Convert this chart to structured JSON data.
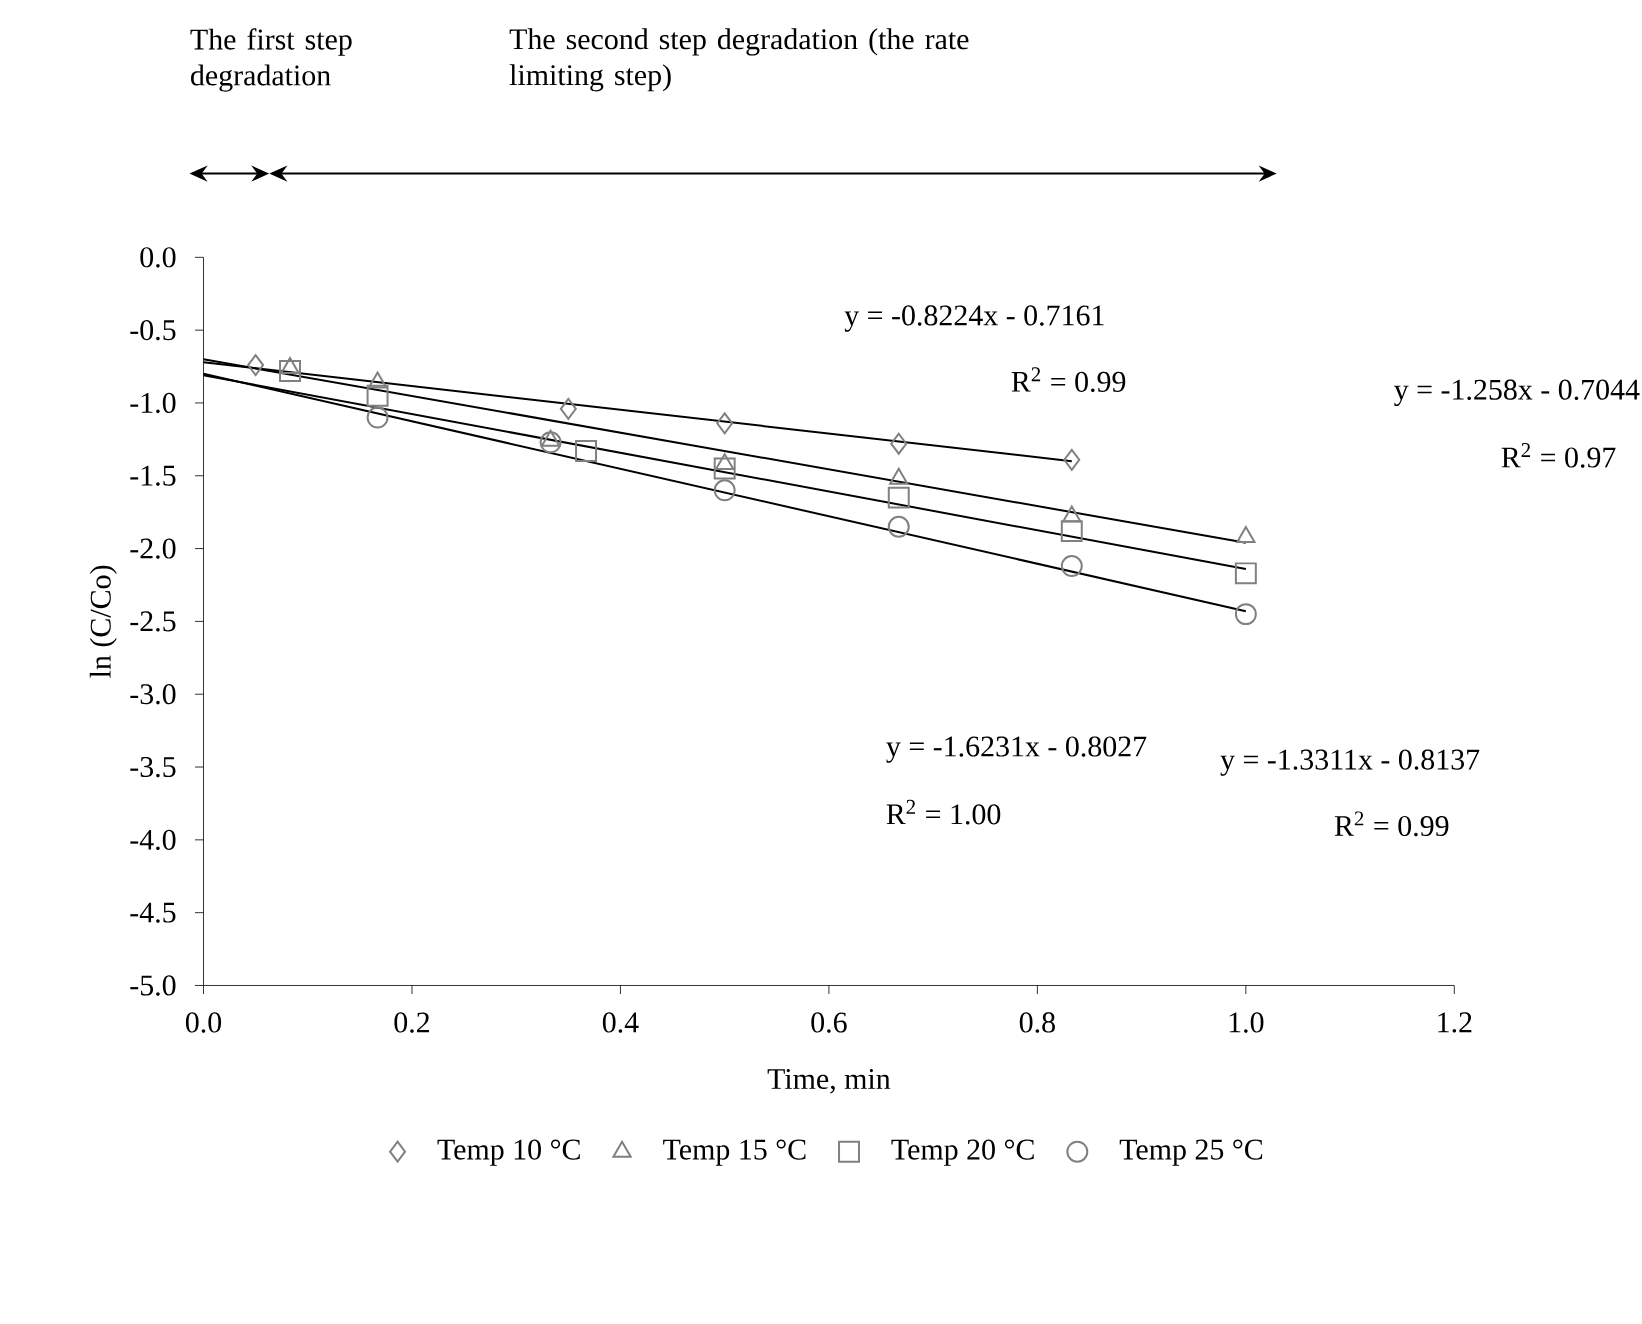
{
  "chart_data": {
    "type": "scatter",
    "xlabel": "Time, min",
    "ylabel": "ln (C/Co)",
    "xlim": [
      0,
      1.2
    ],
    "ylim": [
      -5,
      0
    ],
    "xticks": [
      {
        "value": 0,
        "label": "0.0"
      },
      {
        "value": 0.2,
        "label": "0.2"
      },
      {
        "value": 0.4,
        "label": "0.4"
      },
      {
        "value": 0.6,
        "label": "0.6"
      },
      {
        "value": 0.8,
        "label": "0.8"
      },
      {
        "value": 1.0,
        "label": "1.0"
      },
      {
        "value": 1.2,
        "label": "1.2"
      }
    ],
    "yticks": [
      {
        "value": -5,
        "label": "-5.0"
      },
      {
        "value": -4.5,
        "label": "-4.5"
      },
      {
        "value": -4,
        "label": "-4.0"
      },
      {
        "value": -3.5,
        "label": "-3.5"
      },
      {
        "value": -3,
        "label": "-3.0"
      },
      {
        "value": -2.5,
        "label": "-2.5"
      },
      {
        "value": -2,
        "label": "-2.0"
      },
      {
        "value": -1.5,
        "label": "-1.5"
      },
      {
        "value": -1,
        "label": "-1.0"
      },
      {
        "value": -0.5,
        "label": "-0.5"
      },
      {
        "value": 0,
        "label": "0.0"
      }
    ],
    "legend": "bottom",
    "grid": false,
    "series": [
      {
        "name": "Temp 10 °C",
        "color": "#808080",
        "marker": "diamond",
        "x": [
          0.05,
          0.35,
          0.5,
          0.667,
          0.833
        ],
        "values": [
          -0.74,
          -1.04,
          -1.14,
          -1.28,
          -1.39
        ]
      },
      {
        "name": "Temp 15 °C",
        "color": "#808080",
        "marker": "triangle",
        "x": [
          0.083,
          0.167,
          0.333,
          0.5,
          0.667,
          0.833,
          1.0
        ],
        "values": [
          -0.76,
          -0.86,
          -1.26,
          -1.42,
          -1.52,
          -1.78,
          -1.92
        ]
      },
      {
        "name": "Temp 20 °C",
        "color": "#808080",
        "marker": "square",
        "x": [
          0.083,
          0.167,
          0.367,
          0.5,
          0.667,
          0.833,
          1.0
        ],
        "values": [
          -0.78,
          -0.95,
          -1.33,
          -1.45,
          -1.65,
          -1.88,
          -2.17
        ]
      },
      {
        "name": "Temp 25 °C",
        "color": "#808080",
        "marker": "circle",
        "x": [
          0.167,
          0.333,
          0.5,
          0.667,
          0.833,
          1.0
        ],
        "values": [
          -1.1,
          -1.27,
          -1.6,
          -1.85,
          -2.12,
          -2.45
        ]
      },
      {
        "type": "line",
        "color": "#000000",
        "marker": "none",
        "x": [
          0,
          0.833
        ],
        "values": [
          -0.72,
          -1.4
        ]
      },
      {
        "type": "line",
        "color": "#000000",
        "marker": "none",
        "x": [
          0,
          1.0
        ],
        "values": [
          -0.7,
          -1.96
        ]
      },
      {
        "type": "line",
        "color": "#000000",
        "marker": "none",
        "x": [
          0,
          1.0
        ],
        "values": [
          -0.81,
          -2.14
        ]
      },
      {
        "type": "line",
        "color": "#000000",
        "marker": "none",
        "x": [
          0,
          1.0
        ],
        "values": [
          -0.8,
          -2.43
        ]
      }
    ],
    "annotations": [
      "The first step degradation",
      "The second step degradation (the rate limiting step)",
      "y = -0.8224x - 0.7161",
      "R$^{2}$ = 0.99",
      "y = -1.258x - 0.7044",
      "R$^{2}$ = 0.97",
      "y = -1.6231x - 0.8027",
      "R$^{2}$ = 1.00",
      "y = -1.3311x - 0.8137",
      "R$^{2}$ = 0.99"
    ]
  }
}
